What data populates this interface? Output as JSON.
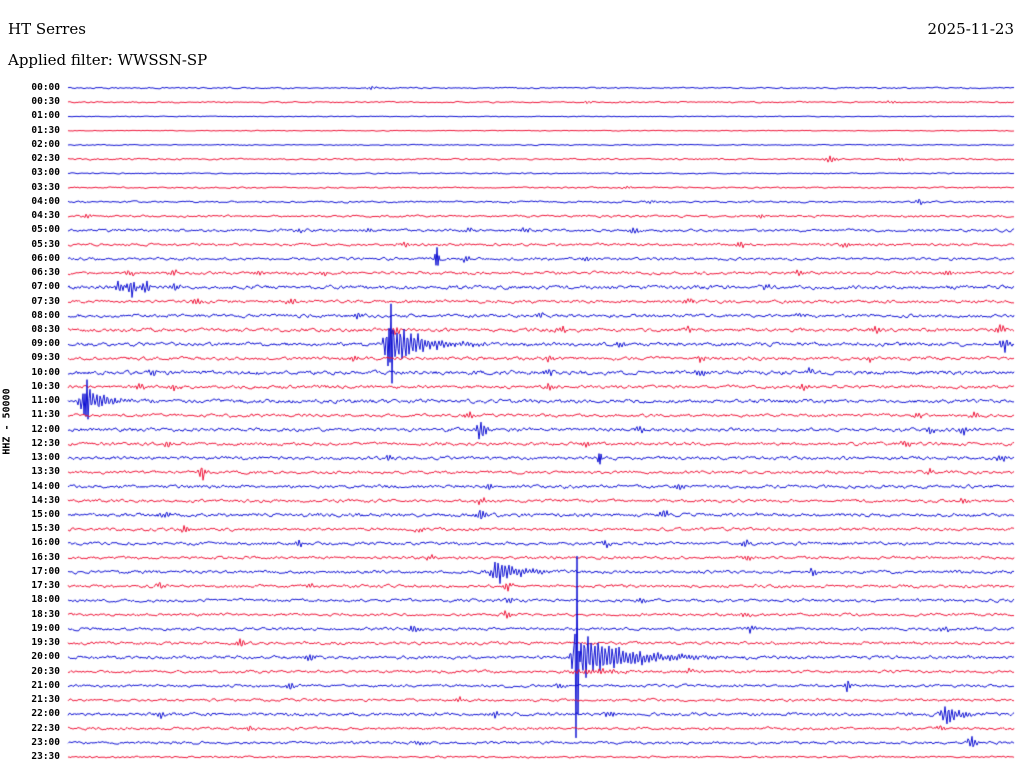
{
  "header": {
    "station": "HT Serres",
    "date": "2025-11-23",
    "filter_line": "Applied filter: WWSSN-SP"
  },
  "axis": {
    "label": "HHZ - 50000"
  },
  "colors": {
    "blue": "#0e10d2",
    "red": "#ee1438",
    "background": "#ffffff",
    "text": "#000000"
  },
  "chart_data": {
    "type": "line",
    "subtype": "helicorder-seismogram",
    "station": "HT Serres",
    "date": "2025-11-23",
    "filter": "WWSSN-SP",
    "channel_scale_label": "HHZ - 50000",
    "minutes_per_row": 30,
    "row_color_cycle": [
      "blue",
      "red"
    ],
    "amplitude_units": "relative trace pixels",
    "event_x_units": "fraction of 30-minute row width",
    "rows": [
      {
        "label": "00:00",
        "color": "blue",
        "noise": 0.6,
        "events": [
          {
            "x": 0.321,
            "amp": 2.2
          }
        ]
      },
      {
        "label": "00:30",
        "color": "red",
        "noise": 0.6,
        "events": [
          {
            "x": 0.55,
            "amp": 1.5
          },
          {
            "x": 0.87,
            "amp": 1.8
          }
        ]
      },
      {
        "label": "01:00",
        "color": "blue",
        "noise": 0.35,
        "events": []
      },
      {
        "label": "01:30",
        "color": "red",
        "noise": 0.35,
        "events": []
      },
      {
        "label": "02:00",
        "color": "blue",
        "noise": 0.45,
        "events": []
      },
      {
        "label": "02:30",
        "color": "red",
        "noise": 0.7,
        "events": [
          {
            "x": 0.806,
            "amp": 4,
            "w": 0.007
          },
          {
            "x": 0.88,
            "amp": 2.5
          }
        ]
      },
      {
        "label": "03:00",
        "color": "blue",
        "noise": 0.5,
        "events": []
      },
      {
        "label": "03:30",
        "color": "red",
        "noise": 0.6,
        "events": [
          {
            "x": 0.592,
            "amp": 2
          }
        ]
      },
      {
        "label": "04:00",
        "color": "blue",
        "noise": 0.8,
        "events": [
          {
            "x": 0.615,
            "amp": 2.5
          },
          {
            "x": 0.9,
            "amp": 3
          }
        ]
      },
      {
        "label": "04:30",
        "color": "red",
        "noise": 0.9,
        "events": [
          {
            "x": 0.021,
            "amp": 3.5
          },
          {
            "x": 0.734,
            "amp": 2.5
          }
        ]
      },
      {
        "label": "05:00",
        "color": "blue",
        "noise": 1.2,
        "events": [
          {
            "x": 0.245,
            "amp": 3
          },
          {
            "x": 0.319,
            "amp": 3
          },
          {
            "x": 0.425,
            "amp": 3.5
          },
          {
            "x": 0.483,
            "amp": 4
          },
          {
            "x": 0.599,
            "amp": 4
          }
        ]
      },
      {
        "label": "05:30",
        "color": "red",
        "noise": 1.1,
        "events": [
          {
            "x": 0.356,
            "amp": 3
          },
          {
            "x": 0.71,
            "amp": 3.5
          },
          {
            "x": 0.821,
            "amp": 3.5
          }
        ]
      },
      {
        "label": "06:00",
        "color": "blue",
        "noise": 1.2,
        "events": [
          {
            "x": 0.39,
            "amp": 10,
            "w": 0.002,
            "spike": true
          },
          {
            "x": 0.42,
            "amp": 4
          },
          {
            "x": 0.547,
            "amp": 3
          }
        ]
      },
      {
        "label": "06:30",
        "color": "red",
        "noise": 1.3,
        "events": [
          {
            "x": 0.066,
            "amp": 4
          },
          {
            "x": 0.11,
            "amp": 4.5
          },
          {
            "x": 0.201,
            "amp": 3.5
          },
          {
            "x": 0.269,
            "amp": 4
          },
          {
            "x": 0.774,
            "amp": 4
          },
          {
            "x": 0.93,
            "amp": 4.5
          }
        ]
      },
      {
        "label": "07:00",
        "color": "blue",
        "noise": 1.6,
        "events": [
          {
            "x": 0.055,
            "amp": 8,
            "w": 0.004
          },
          {
            "x": 0.068,
            "amp": 11,
            "w": 0.005
          },
          {
            "x": 0.082,
            "amp": 8,
            "w": 0.004
          },
          {
            "x": 0.113,
            "amp": 5
          },
          {
            "x": 0.737,
            "amp": 4
          }
        ]
      },
      {
        "label": "07:30",
        "color": "red",
        "noise": 1.3,
        "events": [
          {
            "x": 0.136,
            "amp": 4.5
          },
          {
            "x": 0.235,
            "amp": 4
          },
          {
            "x": 0.657,
            "amp": 3
          }
        ]
      },
      {
        "label": "08:00",
        "color": "blue",
        "noise": 1.4,
        "events": [
          {
            "x": 0.305,
            "amp": 4
          },
          {
            "x": 0.499,
            "amp": 3.5
          },
          {
            "x": 0.774,
            "amp": 3
          }
        ]
      },
      {
        "label": "08:30",
        "color": "red",
        "noise": 1.5,
        "events": [
          {
            "x": 0.346,
            "amp": 5
          },
          {
            "x": 0.52,
            "amp": 5
          },
          {
            "x": 0.657,
            "amp": 4
          },
          {
            "x": 0.853,
            "amp": 4
          },
          {
            "x": 0.985,
            "amp": 6
          }
        ]
      },
      {
        "label": "09:00",
        "color": "blue",
        "noise": 1.6,
        "events": [
          {
            "x": 0.34,
            "amp": 26,
            "w": 0.006,
            "decay": 0.03
          },
          {
            "x": 0.341,
            "amp": 46,
            "w": 0.002,
            "spike": true
          },
          {
            "x": 0.425,
            "amp": 4
          },
          {
            "x": 0.583,
            "amp": 5
          },
          {
            "x": 0.99,
            "amp": 9,
            "w": 0.005
          }
        ]
      },
      {
        "label": "09:30",
        "color": "red",
        "noise": 1.4,
        "events": [
          {
            "x": 0.303,
            "amp": 3.5
          },
          {
            "x": 0.51,
            "amp": 4
          },
          {
            "x": 0.668,
            "amp": 4
          },
          {
            "x": 0.848,
            "amp": 3.5
          }
        ]
      },
      {
        "label": "10:00",
        "color": "blue",
        "noise": 1.7,
        "events": [
          {
            "x": 0.089,
            "amp": 4
          },
          {
            "x": 0.507,
            "amp": 5
          },
          {
            "x": 0.668,
            "amp": 4
          },
          {
            "x": 0.784,
            "amp": 4
          }
        ]
      },
      {
        "label": "10:30",
        "color": "red",
        "noise": 1.4,
        "events": [
          {
            "x": 0.076,
            "amp": 4.5
          },
          {
            "x": 0.113,
            "amp": 4
          },
          {
            "x": 0.51,
            "amp": 4.5
          },
          {
            "x": 0.779,
            "amp": 3.5
          }
        ]
      },
      {
        "label": "11:00",
        "color": "blue",
        "noise": 1.6,
        "events": [
          {
            "x": 0.018,
            "amp": 17,
            "w": 0.006,
            "decay": 0.02
          },
          {
            "x": 0.019,
            "amp": 24,
            "w": 0.002,
            "spike": true
          },
          {
            "x": 0.05,
            "amp": 6,
            "w": 0.005
          }
        ]
      },
      {
        "label": "11:30",
        "color": "red",
        "noise": 1.3,
        "events": [
          {
            "x": 0.425,
            "amp": 4
          },
          {
            "x": 0.899,
            "amp": 3.5
          },
          {
            "x": 0.959,
            "amp": 4
          }
        ]
      },
      {
        "label": "12:00",
        "color": "blue",
        "noise": 1.5,
        "events": [
          {
            "x": 0.437,
            "amp": 11,
            "w": 0.006
          },
          {
            "x": 0.605,
            "amp": 3.5
          },
          {
            "x": 0.911,
            "amp": 5
          },
          {
            "x": 0.946,
            "amp": 5
          }
        ]
      },
      {
        "label": "12:30",
        "color": "red",
        "noise": 1.4,
        "events": [
          {
            "x": 0.105,
            "amp": 4.5
          },
          {
            "x": 0.547,
            "amp": 4
          },
          {
            "x": 0.885,
            "amp": 3.5
          }
        ]
      },
      {
        "label": "13:00",
        "color": "blue",
        "noise": 1.4,
        "events": [
          {
            "x": 0.34,
            "amp": 4
          },
          {
            "x": 0.562,
            "amp": 6,
            "w": 0.002,
            "spike": true
          },
          {
            "x": 0.987,
            "amp": 5
          }
        ]
      },
      {
        "label": "13:30",
        "color": "red",
        "noise": 1.3,
        "events": [
          {
            "x": 0.142,
            "amp": 8,
            "w": 0.004
          },
          {
            "x": 0.911,
            "amp": 4
          }
        ]
      },
      {
        "label": "14:00",
        "color": "blue",
        "noise": 1.4,
        "events": [
          {
            "x": 0.446,
            "amp": 4
          },
          {
            "x": 0.647,
            "amp": 3.5
          }
        ]
      },
      {
        "label": "14:30",
        "color": "red",
        "noise": 1.3,
        "events": [
          {
            "x": 0.436,
            "amp": 4
          },
          {
            "x": 0.948,
            "amp": 3.5
          }
        ]
      },
      {
        "label": "15:00",
        "color": "blue",
        "noise": 1.5,
        "events": [
          {
            "x": 0.103,
            "amp": 4
          },
          {
            "x": 0.436,
            "amp": 7,
            "w": 0.006
          },
          {
            "x": 0.631,
            "amp": 6,
            "w": 0.005
          }
        ]
      },
      {
        "label": "15:30",
        "color": "red",
        "noise": 1.3,
        "events": [
          {
            "x": 0.124,
            "amp": 4
          },
          {
            "x": 0.372,
            "amp": 3.5
          }
        ]
      },
      {
        "label": "16:00",
        "color": "blue",
        "noise": 1.3,
        "events": [
          {
            "x": 0.245,
            "amp": 4.5
          },
          {
            "x": 0.568,
            "amp": 3.5
          },
          {
            "x": 0.716,
            "amp": 4
          }
        ]
      },
      {
        "label": "16:30",
        "color": "red",
        "noise": 1.2,
        "events": [
          {
            "x": 0.383,
            "amp": 3
          },
          {
            "x": 0.719,
            "amp": 3.5
          }
        ]
      },
      {
        "label": "17:00",
        "color": "blue",
        "noise": 1.4,
        "events": [
          {
            "x": 0.454,
            "amp": 15,
            "w": 0.008,
            "decay": 0.02
          },
          {
            "x": 0.787,
            "amp": 4.5
          }
        ]
      },
      {
        "label": "17:30",
        "color": "red",
        "noise": 1.3,
        "events": [
          {
            "x": 0.097,
            "amp": 4
          },
          {
            "x": 0.256,
            "amp": 3.5
          },
          {
            "x": 0.465,
            "amp": 4.5
          }
        ]
      },
      {
        "label": "18:00",
        "color": "blue",
        "noise": 1.3,
        "events": [
          {
            "x": 0.467,
            "amp": 4
          },
          {
            "x": 0.605,
            "amp": 3.5
          }
        ]
      },
      {
        "label": "18:30",
        "color": "red",
        "noise": 1.2,
        "events": [
          {
            "x": 0.464,
            "amp": 6,
            "w": 0.004
          },
          {
            "x": 0.716,
            "amp": 3.5
          }
        ]
      },
      {
        "label": "19:00",
        "color": "blue",
        "noise": 1.3,
        "events": [
          {
            "x": 0.365,
            "amp": 6,
            "w": 0.005
          },
          {
            "x": 0.721,
            "amp": 5
          },
          {
            "x": 0.927,
            "amp": 3.5
          }
        ]
      },
      {
        "label": "19:30",
        "color": "red",
        "noise": 1.3,
        "events": [
          {
            "x": 0.182,
            "amp": 8,
            "w": 0.004
          }
        ]
      },
      {
        "label": "20:00",
        "color": "blue",
        "noise": 1.4,
        "events": [
          {
            "x": 0.256,
            "amp": 5
          },
          {
            "x": 0.536,
            "amp": 28,
            "w": 0.004,
            "decay": 0.05
          },
          {
            "x": 0.538,
            "amp": 88,
            "w": 0.002,
            "spike": true
          }
        ]
      },
      {
        "label": "20:30",
        "color": "red",
        "noise": 1.2,
        "events": [
          {
            "x": 0.56,
            "amp": 3,
            "w": 0.03
          },
          {
            "x": 0.657,
            "amp": 3
          }
        ]
      },
      {
        "label": "21:00",
        "color": "blue",
        "noise": 1.2,
        "events": [
          {
            "x": 0.235,
            "amp": 4
          },
          {
            "x": 0.52,
            "amp": 3.5
          },
          {
            "x": 0.824,
            "amp": 9,
            "w": 0.003
          }
        ]
      },
      {
        "label": "21:30",
        "color": "red",
        "noise": 1.1,
        "events": [
          {
            "x": 0.414,
            "amp": 3
          }
        ]
      },
      {
        "label": "22:00",
        "color": "blue",
        "noise": 1.4,
        "events": [
          {
            "x": 0.097,
            "amp": 4.5
          },
          {
            "x": 0.451,
            "amp": 5
          },
          {
            "x": 0.573,
            "amp": 4
          },
          {
            "x": 0.929,
            "amp": 13,
            "w": 0.006,
            "decay": 0.012
          }
        ]
      },
      {
        "label": "22:30",
        "color": "red",
        "noise": 1.2,
        "events": [
          {
            "x": 0.192,
            "amp": 3
          },
          {
            "x": 0.922,
            "amp": 3
          }
        ]
      },
      {
        "label": "23:00",
        "color": "blue",
        "noise": 1.2,
        "events": [
          {
            "x": 0.372,
            "amp": 3
          },
          {
            "x": 0.956,
            "amp": 8,
            "w": 0.005
          }
        ]
      },
      {
        "label": "23:30",
        "color": "red",
        "noise": 0.8,
        "events": []
      }
    ]
  }
}
